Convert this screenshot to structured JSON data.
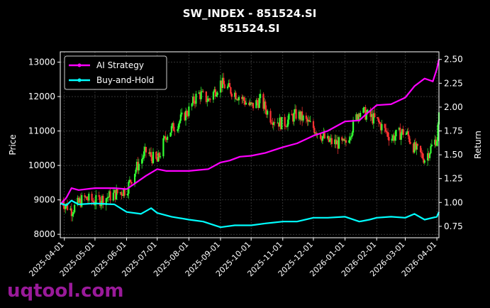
{
  "chart_data": {
    "type": "line",
    "title": "SW_INDEX - 851524.SI",
    "subtitle": "851524.SI",
    "ylabel_left": "Price",
    "ylabel_right": "Return",
    "x_ticks": [
      "2025-04-01",
      "2025-05-01",
      "2025-06-01",
      "2025-07-01",
      "2025-08-01",
      "2025-09-01",
      "2025-10-01",
      "2025-11-01",
      "2025-12-01",
      "2026-01-01",
      "2026-02-01",
      "2026-03-01",
      "2026-04-01"
    ],
    "x_range": [
      "2025-03-28",
      "2026-04-03"
    ],
    "y_left_ticks": [
      "8000",
      "9000",
      "10000",
      "11000",
      "12000",
      "13000"
    ],
    "y_left_range": [
      7900,
      13300
    ],
    "y_right_ticks": [
      "0.75",
      "1.00",
      "1.25",
      "1.50",
      "1.75",
      "2.00",
      "2.25",
      "2.50"
    ],
    "y_right_range": [
      0.63,
      2.58
    ],
    "grid": true,
    "legend_position": "top-left",
    "colors": {
      "up": "#33ff33",
      "down": "#ff3333",
      "ai": "#ff00ff",
      "bh": "#00ffff"
    },
    "series": [
      {
        "name": "AI Strategy",
        "x": [
          "2025-03-28",
          "2025-04-03",
          "2025-04-08",
          "2025-04-15",
          "2025-05-01",
          "2025-05-20",
          "2025-06-01",
          "2025-06-12",
          "2025-06-20",
          "2025-07-01",
          "2025-07-10",
          "2025-07-20",
          "2025-08-01",
          "2025-08-10",
          "2025-08-20",
          "2025-09-01",
          "2025-09-10",
          "2025-09-20",
          "2025-10-01",
          "2025-10-15",
          "2025-11-01",
          "2025-11-15",
          "2025-12-01",
          "2025-12-15",
          "2026-01-01",
          "2026-01-15",
          "2026-01-20",
          "2026-02-01",
          "2026-02-15",
          "2026-03-01",
          "2026-03-10",
          "2026-03-20",
          "2026-03-28",
          "2026-04-01",
          "2026-04-03"
        ],
        "values": [
          0.98,
          1.05,
          1.15,
          1.13,
          1.15,
          1.15,
          1.14,
          1.22,
          1.28,
          1.35,
          1.33,
          1.33,
          1.33,
          1.34,
          1.35,
          1.42,
          1.44,
          1.48,
          1.49,
          1.52,
          1.58,
          1.62,
          1.7,
          1.75,
          1.85,
          1.86,
          1.91,
          2.02,
          2.03,
          2.1,
          2.22,
          2.3,
          2.27,
          2.4,
          2.5
        ]
      },
      {
        "name": "Buy-and-Hold",
        "x": [
          "2025-03-28",
          "2025-04-03",
          "2025-04-08",
          "2025-04-15",
          "2025-05-01",
          "2025-05-20",
          "2025-06-01",
          "2025-06-15",
          "2025-06-25",
          "2025-07-01",
          "2025-07-15",
          "2025-08-01",
          "2025-08-15",
          "2025-09-01",
          "2025-09-15",
          "2025-10-01",
          "2025-10-15",
          "2025-11-01",
          "2025-11-15",
          "2025-12-01",
          "2025-12-15",
          "2026-01-01",
          "2026-01-15",
          "2026-01-25",
          "2026-02-01",
          "2026-02-15",
          "2026-03-01",
          "2026-03-10",
          "2026-03-20",
          "2026-04-01",
          "2026-04-03"
        ],
        "values": [
          0.99,
          0.97,
          1.02,
          0.98,
          0.99,
          0.98,
          0.9,
          0.88,
          0.94,
          0.89,
          0.85,
          0.82,
          0.8,
          0.74,
          0.76,
          0.76,
          0.78,
          0.8,
          0.8,
          0.84,
          0.84,
          0.85,
          0.8,
          0.82,
          0.84,
          0.85,
          0.84,
          0.88,
          0.82,
          0.85,
          0.9
        ]
      }
    ],
    "candles": {
      "dates": [
        "2025-03-28",
        "2025-04-08",
        "2025-04-20",
        "2025-05-01",
        "2025-05-15",
        "2025-06-01",
        "2025-06-10",
        "2025-06-20",
        "2025-07-01",
        "2025-07-10",
        "2025-07-20",
        "2025-08-01",
        "2025-08-10",
        "2025-08-20",
        "2025-09-01",
        "2025-09-10",
        "2025-09-20",
        "2025-10-01",
        "2025-10-10",
        "2025-10-20",
        "2025-11-01",
        "2025-11-15",
        "2025-12-01",
        "2025-12-15",
        "2026-01-01",
        "2026-01-15",
        "2026-02-01",
        "2026-02-15",
        "2026-03-01",
        "2026-03-10",
        "2026-03-20",
        "2026-04-01",
        "2026-04-03"
      ],
      "close": [
        9000,
        8700,
        9050,
        8950,
        9100,
        9300,
        9900,
        10400,
        10100,
        10900,
        11200,
        11600,
        12100,
        11900,
        12400,
        12200,
        12000,
        11700,
        11900,
        11400,
        11200,
        11500,
        11100,
        10700,
        10600,
        11600,
        11300,
        10800,
        11000,
        10500,
        10200,
        10800,
        11400
      ]
    }
  },
  "watermark": "uqtool.com"
}
